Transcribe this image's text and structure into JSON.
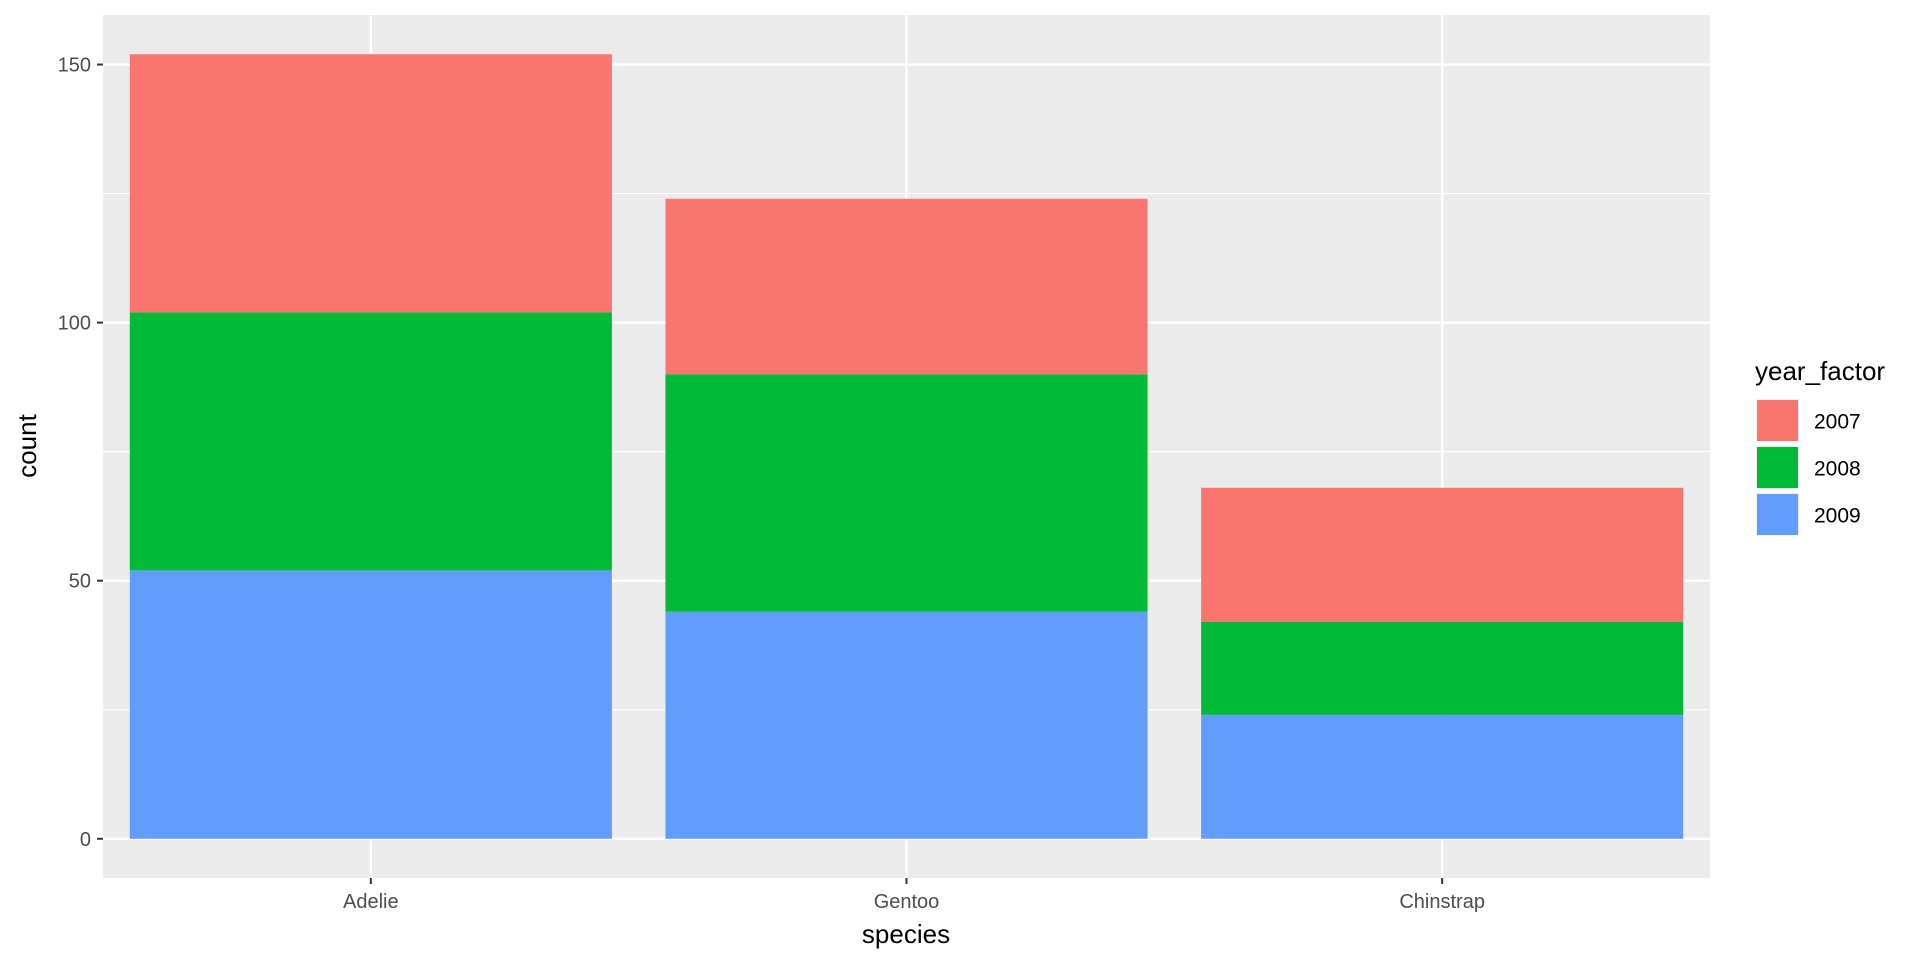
{
  "chart_data": {
    "type": "bar",
    "stacked": true,
    "title": "",
    "xlabel": "species",
    "ylabel": "count",
    "categories": [
      "Adelie",
      "Gentoo",
      "Chinstrap"
    ],
    "series": [
      {
        "name": "2007",
        "values": [
          50,
          34,
          26
        ],
        "color": "#F8766D"
      },
      {
        "name": "2008",
        "values": [
          50,
          46,
          18
        ],
        "color": "#00BA38"
      },
      {
        "name": "2009",
        "values": [
          52,
          44,
          24
        ],
        "color": "#619CFF"
      }
    ],
    "stack_order_bottom_to_top": [
      "2009",
      "2008",
      "2007"
    ],
    "ylim": [
      -7.6,
      159.6
    ],
    "yticks": [
      0,
      50,
      100,
      150
    ],
    "yticks_minor": [
      25,
      75,
      125
    ],
    "grid": true,
    "panel_background": "#EBEBEB",
    "gridline_color": "#FFFFFF",
    "legend": {
      "title": "year_factor",
      "position": "right"
    }
  }
}
